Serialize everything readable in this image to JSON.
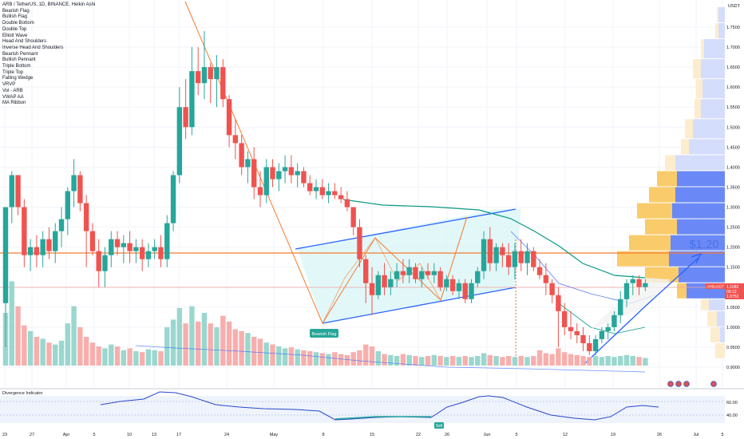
{
  "header": {
    "title": "ARB / TetherUS, 1D, BINANCE, Heikin Ashi",
    "currency": "USDT"
  },
  "legend_items": [
    "Bearish Flag",
    "Bullish Flag",
    "Double Bottom",
    "Double Top",
    "Elliott Wave",
    "Head And Shoulders",
    "Inverse Head And Shoulders",
    "Bearish Pennant",
    "Bullish Pennant",
    "Triple Bottom",
    "Triple Top",
    "Falling Wedge",
    "VRVP",
    "Vol - ARB",
    "VWAP AA",
    "MA Ribbon"
  ],
  "annotations": {
    "bearish_flag_label": "Bearish Flag",
    "target_price": "$1.20",
    "sell_label": "Sell"
  },
  "price_badge": {
    "symbol": "ARBUSDT",
    "price": "1.1082",
    "countdown": "09:13",
    "second": "1.0753"
  },
  "colors": {
    "up": "#26a69a",
    "down": "#ef5350",
    "trend": "#2962ff",
    "flag": "#f57c30",
    "ma": "#089981",
    "vrvp_up": "#5b7cf5",
    "vrvp_down": "#f9c55a"
  },
  "indicator": {
    "title": "Divergence Indicator",
    "yticks": [
      "60.00",
      "40.00"
    ]
  },
  "chart_data": {
    "type": "candlestick",
    "title": "ARB / TetherUS, 1D, BINANCE, Heikin Ashi",
    "xlabel": "",
    "ylabel": "",
    "x_tick_labels": [
      "23",
      "27",
      "Apr",
      "5",
      "10",
      "13",
      "17",
      "24",
      "May",
      "8",
      "15",
      "22",
      "26",
      "Jun",
      "5",
      "12",
      "19",
      "26",
      "Jul",
      "5"
    ],
    "y_tick_labels": [
      "1.7500",
      "1.7000",
      "1.6500",
      "1.6000",
      "1.5500",
      "1.5000",
      "1.4500",
      "1.4000",
      "1.3500",
      "1.3000",
      "1.2500",
      "1.2000",
      "1.1500",
      "1.1000",
      "1.0500",
      "1.0000",
      "0.9500",
      "0.9000"
    ],
    "ylim": [
      0.87,
      1.8
    ],
    "last_price": 1.1082,
    "candles": [
      [
        1.06,
        1.3,
        0.95,
        1.3
      ],
      [
        1.3,
        1.39,
        1.26,
        1.38
      ],
      [
        1.38,
        1.38,
        1.28,
        1.3
      ],
      [
        1.3,
        1.32,
        1.15,
        1.18
      ],
      [
        1.18,
        1.22,
        1.14,
        1.2
      ],
      [
        1.2,
        1.23,
        1.15,
        1.18
      ],
      [
        1.18,
        1.24,
        1.15,
        1.22
      ],
      [
        1.22,
        1.25,
        1.17,
        1.19
      ],
      [
        1.19,
        1.26,
        1.16,
        1.24
      ],
      [
        1.24,
        1.3,
        1.2,
        1.27
      ],
      [
        1.27,
        1.35,
        1.23,
        1.34
      ],
      [
        1.34,
        1.42,
        1.3,
        1.38
      ],
      [
        1.38,
        1.39,
        1.29,
        1.31
      ],
      [
        1.31,
        1.33,
        1.15,
        1.24
      ],
      [
        1.24,
        1.26,
        1.18,
        1.19
      ],
      [
        1.19,
        1.22,
        1.1,
        1.14
      ],
      [
        1.14,
        1.2,
        1.1,
        1.18
      ],
      [
        1.18,
        1.24,
        1.15,
        1.22
      ],
      [
        1.22,
        1.24,
        1.18,
        1.2
      ],
      [
        1.2,
        1.23,
        1.16,
        1.21
      ],
      [
        1.21,
        1.24,
        1.16,
        1.19
      ],
      [
        1.19,
        1.22,
        1.16,
        1.2
      ],
      [
        1.2,
        1.22,
        1.14,
        1.17
      ],
      [
        1.17,
        1.21,
        1.15,
        1.19
      ],
      [
        1.19,
        1.22,
        1.17,
        1.2
      ],
      [
        1.2,
        1.23,
        1.15,
        1.17
      ],
      [
        1.17,
        1.28,
        1.15,
        1.26
      ],
      [
        1.26,
        1.39,
        1.24,
        1.38
      ],
      [
        1.38,
        1.6,
        1.36,
        1.55
      ],
      [
        1.55,
        1.62,
        1.47,
        1.5
      ],
      [
        1.5,
        1.7,
        1.48,
        1.64
      ],
      [
        1.64,
        1.7,
        1.58,
        1.61
      ],
      [
        1.61,
        1.74,
        1.57,
        1.65
      ],
      [
        1.65,
        1.66,
        1.56,
        1.62
      ],
      [
        1.62,
        1.68,
        1.55,
        1.65
      ],
      [
        1.65,
        1.67,
        1.55,
        1.57
      ],
      [
        1.57,
        1.58,
        1.45,
        1.48
      ],
      [
        1.48,
        1.52,
        1.42,
        1.46
      ],
      [
        1.46,
        1.48,
        1.38,
        1.4
      ],
      [
        1.4,
        1.44,
        1.36,
        1.42
      ],
      [
        1.42,
        1.45,
        1.32,
        1.35
      ],
      [
        1.35,
        1.39,
        1.3,
        1.33
      ],
      [
        1.33,
        1.42,
        1.31,
        1.4
      ],
      [
        1.4,
        1.42,
        1.35,
        1.37
      ],
      [
        1.37,
        1.41,
        1.34,
        1.39
      ],
      [
        1.39,
        1.43,
        1.36,
        1.4
      ],
      [
        1.4,
        1.43,
        1.36,
        1.38
      ],
      [
        1.38,
        1.41,
        1.35,
        1.39
      ],
      [
        1.39,
        1.4,
        1.35,
        1.36
      ],
      [
        1.36,
        1.38,
        1.33,
        1.34
      ],
      [
        1.34,
        1.37,
        1.32,
        1.35
      ],
      [
        1.35,
        1.37,
        1.32,
        1.33
      ],
      [
        1.33,
        1.36,
        1.31,
        1.34
      ],
      [
        1.34,
        1.36,
        1.32,
        1.33
      ],
      [
        1.33,
        1.35,
        1.31,
        1.32
      ],
      [
        1.32,
        1.34,
        1.29,
        1.3
      ],
      [
        1.3,
        1.3,
        1.23,
        1.25
      ],
      [
        1.25,
        1.27,
        1.15,
        1.17
      ],
      [
        1.17,
        1.18,
        1.06,
        1.11
      ],
      [
        1.11,
        1.15,
        1.03,
        1.08
      ],
      [
        1.08,
        1.14,
        1.07,
        1.13
      ],
      [
        1.13,
        1.16,
        1.08,
        1.1
      ],
      [
        1.1,
        1.14,
        1.08,
        1.12
      ],
      [
        1.12,
        1.16,
        1.1,
        1.14
      ],
      [
        1.14,
        1.17,
        1.11,
        1.13
      ],
      [
        1.13,
        1.17,
        1.11,
        1.15
      ],
      [
        1.15,
        1.16,
        1.11,
        1.12
      ],
      [
        1.12,
        1.15,
        1.1,
        1.14
      ],
      [
        1.14,
        1.16,
        1.12,
        1.13
      ],
      [
        1.13,
        1.16,
        1.11,
        1.14
      ],
      [
        1.14,
        1.15,
        1.09,
        1.1
      ],
      [
        1.1,
        1.13,
        1.09,
        1.12
      ],
      [
        1.12,
        1.13,
        1.08,
        1.09
      ],
      [
        1.09,
        1.12,
        1.07,
        1.11
      ],
      [
        1.11,
        1.12,
        1.06,
        1.07
      ],
      [
        1.07,
        1.12,
        1.06,
        1.11
      ],
      [
        1.11,
        1.15,
        1.1,
        1.14
      ],
      [
        1.14,
        1.24,
        1.12,
        1.22
      ],
      [
        1.22,
        1.25,
        1.14,
        1.16
      ],
      [
        1.16,
        1.21,
        1.14,
        1.2
      ],
      [
        1.2,
        1.21,
        1.15,
        1.18
      ],
      [
        1.18,
        1.21,
        1.13,
        1.15
      ],
      [
        1.15,
        1.21,
        1.12,
        1.19
      ],
      [
        1.19,
        1.22,
        1.14,
        1.16
      ],
      [
        1.16,
        1.21,
        1.13,
        1.19
      ],
      [
        1.19,
        1.2,
        1.14,
        1.15
      ],
      [
        1.15,
        1.17,
        1.12,
        1.13
      ],
      [
        1.13,
        1.16,
        1.08,
        1.11
      ],
      [
        1.11,
        1.12,
        1.06,
        1.08
      ],
      [
        1.08,
        1.1,
        0.95,
        1.04
      ],
      [
        1.04,
        1.06,
        0.98,
        1.0
      ],
      [
        1.0,
        1.04,
        0.97,
        0.99
      ],
      [
        0.99,
        1.01,
        0.96,
        0.98
      ],
      [
        0.98,
        1.0,
        0.94,
        0.96
      ],
      [
        0.96,
        0.98,
        0.93,
        0.94
      ],
      [
        0.94,
        0.98,
        0.93,
        0.97
      ],
      [
        0.97,
        1.0,
        0.96,
        0.99
      ],
      [
        0.99,
        1.01,
        0.97,
        1.0
      ],
      [
        1.0,
        1.04,
        0.99,
        1.03
      ],
      [
        1.03,
        1.09,
        1.01,
        1.07
      ],
      [
        1.07,
        1.12,
        1.05,
        1.11
      ],
      [
        1.11,
        1.13,
        1.08,
        1.12
      ],
      [
        1.12,
        1.13,
        1.08,
        1.1
      ],
      [
        1.1,
        1.12,
        1.09,
        1.11
      ]
    ],
    "volume": [
      0.55,
      0.88,
      0.62,
      0.42,
      0.36,
      0.3,
      0.28,
      0.24,
      0.22,
      0.26,
      0.44,
      0.62,
      0.4,
      0.3,
      0.24,
      0.2,
      0.18,
      0.22,
      0.2,
      0.16,
      0.18,
      0.15,
      0.14,
      0.17,
      0.16,
      0.15,
      0.4,
      0.48,
      0.6,
      0.44,
      0.62,
      0.46,
      0.55,
      0.44,
      0.4,
      0.52,
      0.46,
      0.38,
      0.36,
      0.34,
      0.3,
      0.28,
      0.24,
      0.22,
      0.2,
      0.18,
      0.19,
      0.17,
      0.16,
      0.15,
      0.14,
      0.13,
      0.12,
      0.14,
      0.12,
      0.11,
      0.14,
      0.16,
      0.22,
      0.2,
      0.15,
      0.12,
      0.11,
      0.1,
      0.12,
      0.11,
      0.1,
      0.09,
      0.1,
      0.11,
      0.1,
      0.09,
      0.1,
      0.09,
      0.1,
      0.09,
      0.1,
      0.13,
      0.11,
      0.1,
      0.09,
      0.1,
      0.09,
      0.1,
      0.09,
      0.1,
      0.16,
      0.13,
      0.12,
      0.18,
      0.14,
      0.12,
      0.11,
      0.1,
      0.09,
      0.1,
      0.09,
      0.1,
      0.09,
      0.1,
      0.11,
      0.1,
      0.09,
      0.08
    ]
  }
}
